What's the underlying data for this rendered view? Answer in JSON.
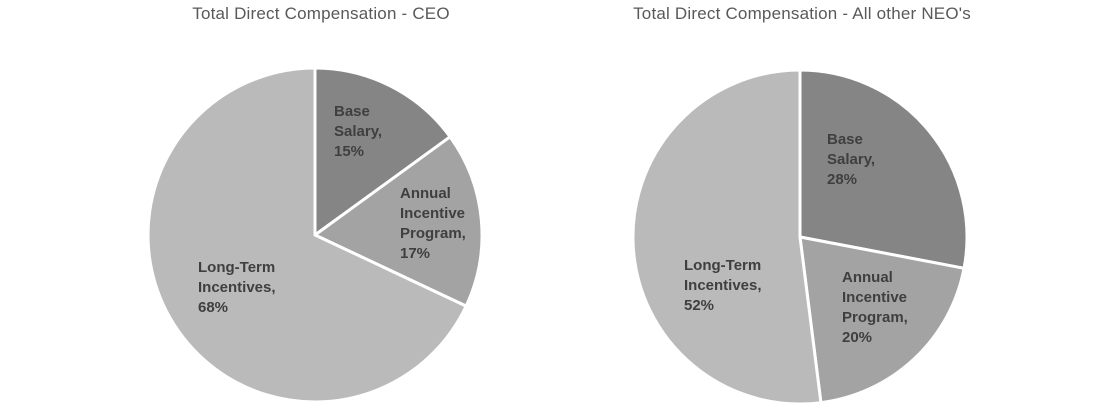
{
  "page": {
    "background_color": "#ffffff",
    "title_color": "#595959",
    "label_color": "#3f3f3f",
    "separator_color": "#ffffff"
  },
  "chart_data": [
    {
      "type": "pie",
      "title": "Total Direct Compensation - CEO",
      "labels": [
        "Base Salary",
        "Annual Incentive Program",
        "Long-Term Incentives"
      ],
      "values": [
        15,
        17,
        68
      ],
      "unit": "%",
      "colors": [
        "#858585",
        "#a3a3a3",
        "#bababa"
      ],
      "start_angle_deg": 0,
      "direction": "clockwise",
      "legend": "none",
      "data_labels": [
        "Base\nSalary,\n15%",
        "Annual\nIncentive\nProgram,\n17%",
        "Long-Term\nIncentives,\n68%"
      ]
    },
    {
      "type": "pie",
      "title": "Total Direct Compensation - All other NEO's",
      "labels": [
        "Base Salary",
        "Annual Incentive Program",
        "Long-Term Incentives"
      ],
      "values": [
        28,
        20,
        52
      ],
      "unit": "%",
      "colors": [
        "#858585",
        "#a3a3a3",
        "#bababa"
      ],
      "start_angle_deg": 0,
      "direction": "clockwise",
      "legend": "none",
      "data_labels": [
        "Base\nSalary,\n28%",
        "Annual\nIncentive\nProgram,\n20%",
        "Long-Term\nIncentives,\n52%"
      ]
    }
  ]
}
